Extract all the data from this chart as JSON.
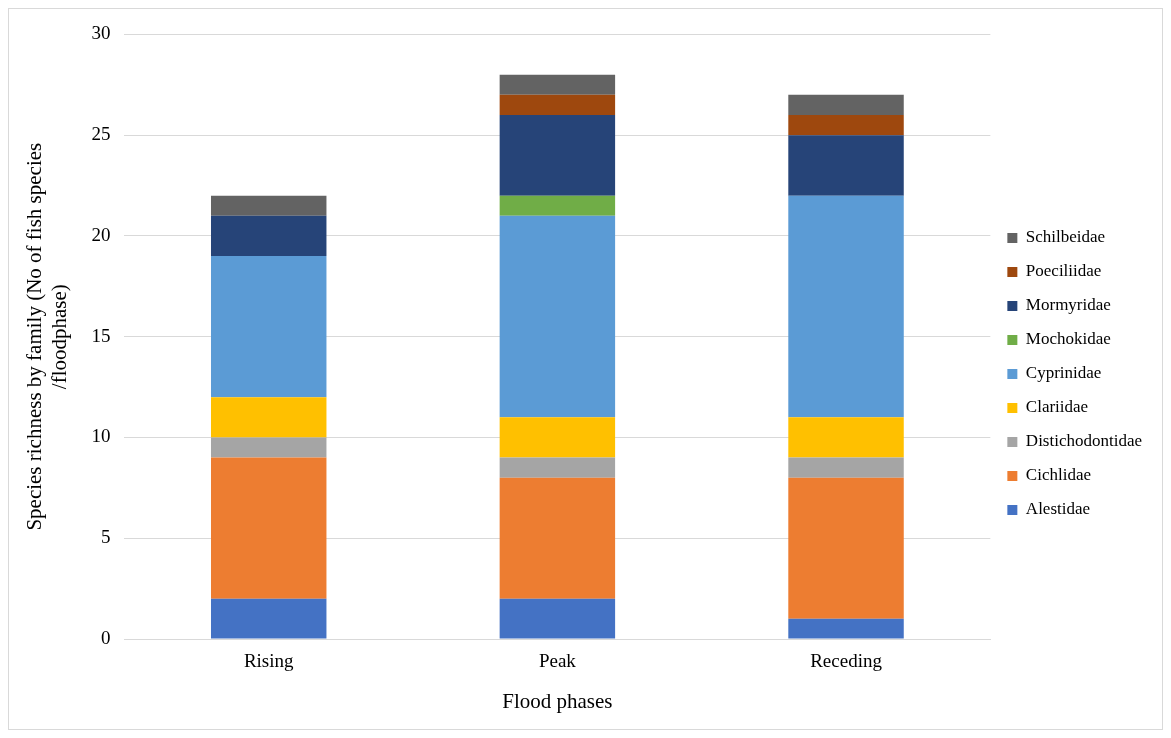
{
  "chart_data": {
    "type": "bar",
    "stacked": true,
    "xlabel": "Flood phases",
    "ylabel": "Species richness by family (No of fish species /floodphase)",
    "categories": [
      "Rising",
      "Peak",
      "Receding"
    ],
    "series": [
      {
        "name": "Alestidae",
        "color": "#4472c4",
        "values": [
          2,
          2,
          1
        ]
      },
      {
        "name": "Cichlidae",
        "color": "#ed7d31",
        "values": [
          7,
          6,
          7
        ]
      },
      {
        "name": "Distichodontidae",
        "color": "#a5a5a5",
        "values": [
          1,
          1,
          1
        ]
      },
      {
        "name": "Clariidae",
        "color": "#ffc000",
        "values": [
          2,
          2,
          2
        ]
      },
      {
        "name": "Cyprinidae",
        "color": "#5b9bd5",
        "values": [
          7,
          10,
          11
        ]
      },
      {
        "name": "Mochokidae",
        "color": "#70ad47",
        "values": [
          0,
          1,
          0
        ]
      },
      {
        "name": "Mormyridae",
        "color": "#264478",
        "values": [
          2,
          4,
          3
        ]
      },
      {
        "name": "Poeciliidae",
        "color": "#9e480e",
        "values": [
          0,
          1,
          1
        ]
      },
      {
        "name": "Schilbeidae",
        "color": "#636363",
        "values": [
          1,
          1,
          1
        ]
      }
    ],
    "ylim": [
      0,
      30
    ],
    "yticks": [
      0,
      5,
      10,
      15,
      20,
      25,
      30
    ],
    "grid": "y",
    "legend": "right"
  }
}
